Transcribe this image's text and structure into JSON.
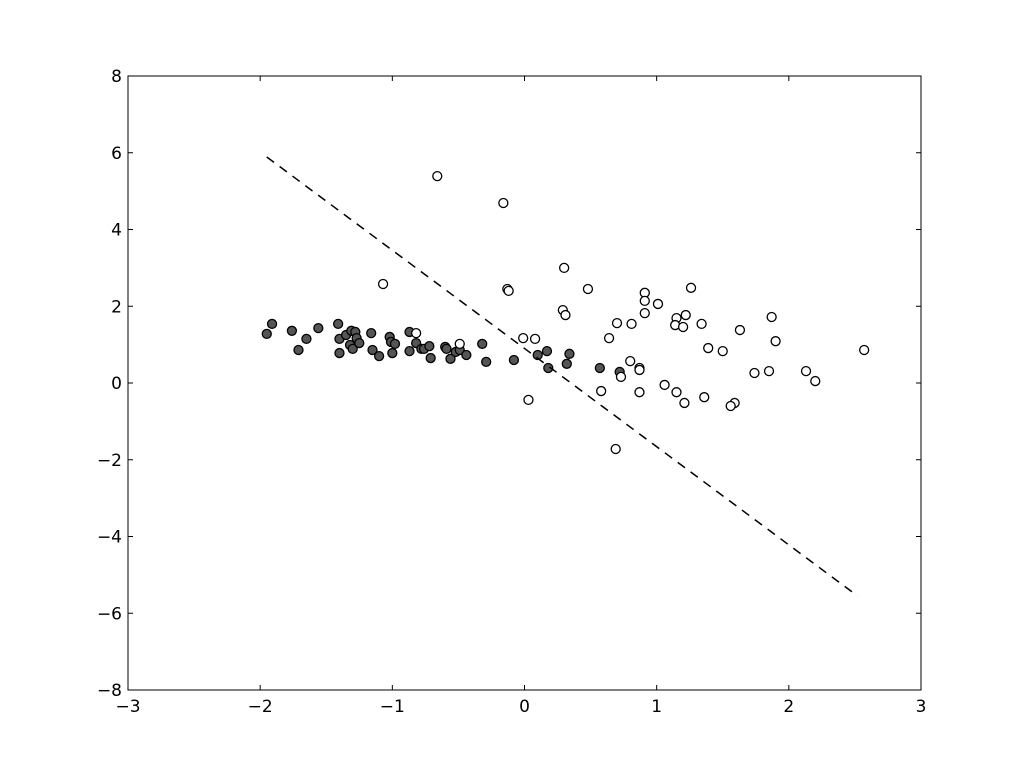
{
  "chart_data": {
    "type": "scatter",
    "title": "",
    "xlabel": "",
    "ylabel": "",
    "xlim": [
      -3,
      3
    ],
    "ylim": [
      -8,
      8
    ],
    "xticks": [
      -3,
      -2,
      -1,
      0,
      1,
      2,
      3
    ],
    "yticks": [
      -8,
      -6,
      -4,
      -2,
      0,
      2,
      4,
      6,
      8
    ],
    "xtick_labels": [
      "−3",
      "−2",
      "−1",
      "0",
      "1",
      "2",
      "3"
    ],
    "ytick_labels": [
      "−8",
      "−6",
      "−4",
      "−2",
      "0",
      "2",
      "4",
      "6",
      "8"
    ],
    "grid": false,
    "colors": {
      "filled": "#555555",
      "open": "#ffffff",
      "edge": "#000000",
      "line": "#000000"
    },
    "series": [
      {
        "marker": "filled-circle",
        "points": [
          [
            -1.95,
            1.28
          ],
          [
            -1.91,
            1.54
          ],
          [
            -1.76,
            1.36
          ],
          [
            -1.71,
            0.86
          ],
          [
            -1.65,
            1.15
          ],
          [
            -1.56,
            1.43
          ],
          [
            -1.41,
            1.54
          ],
          [
            -1.4,
            0.78
          ],
          [
            -1.4,
            1.15
          ],
          [
            -1.35,
            1.25
          ],
          [
            -1.32,
            0.99
          ],
          [
            -1.31,
            1.36
          ],
          [
            -1.3,
            0.89
          ],
          [
            -1.28,
            1.33
          ],
          [
            -1.27,
            1.17
          ],
          [
            -1.25,
            1.04
          ],
          [
            -1.16,
            1.3
          ],
          [
            -1.15,
            0.86
          ],
          [
            -1.1,
            0.7
          ],
          [
            -1.02,
            1.2
          ],
          [
            -1.01,
            1.07
          ],
          [
            -1.0,
            0.78
          ],
          [
            -0.98,
            1.02
          ],
          [
            -0.87,
            1.33
          ],
          [
            -0.87,
            0.83
          ],
          [
            -0.82,
            1.04
          ],
          [
            -0.78,
            0.89
          ],
          [
            -0.76,
            0.89
          ],
          [
            -0.72,
            0.96
          ],
          [
            -0.71,
            0.65
          ],
          [
            -0.6,
            0.94
          ],
          [
            -0.59,
            0.89
          ],
          [
            -0.56,
            0.63
          ],
          [
            -0.52,
            0.81
          ],
          [
            -0.49,
            0.86
          ],
          [
            -0.44,
            0.73
          ],
          [
            -0.32,
            1.02
          ],
          [
            -0.29,
            0.55
          ],
          [
            -0.08,
            0.6
          ],
          [
            0.1,
            0.73
          ],
          [
            0.18,
            0.39
          ],
          [
            0.17,
            0.83
          ],
          [
            0.32,
            0.5
          ],
          [
            0.34,
            0.76
          ],
          [
            0.57,
            0.39
          ],
          [
            0.72,
            0.29
          ]
        ]
      },
      {
        "marker": "open-circle",
        "points": [
          [
            -0.66,
            5.39
          ],
          [
            -0.16,
            4.69
          ],
          [
            -1.07,
            2.58
          ],
          [
            -0.82,
            1.3
          ],
          [
            -0.49,
            1.02
          ],
          [
            -0.13,
            2.45
          ],
          [
            -0.12,
            2.4
          ],
          [
            0.3,
            3.0
          ],
          [
            0.29,
            1.9
          ],
          [
            0.31,
            1.77
          ],
          [
            0.48,
            2.45
          ],
          [
            -0.01,
            1.17
          ],
          [
            0.08,
            1.15
          ],
          [
            0.03,
            -0.44
          ],
          [
            0.64,
            1.17
          ],
          [
            0.7,
            1.56
          ],
          [
            0.81,
            1.54
          ],
          [
            0.91,
            2.35
          ],
          [
            0.91,
            2.14
          ],
          [
            0.91,
            1.82
          ],
          [
            1.01,
            2.06
          ],
          [
            1.26,
            2.48
          ],
          [
            1.15,
            1.69
          ],
          [
            1.14,
            1.51
          ],
          [
            1.2,
            1.46
          ],
          [
            1.22,
            1.77
          ],
          [
            1.34,
            1.54
          ],
          [
            1.39,
            0.91
          ],
          [
            1.63,
            1.38
          ],
          [
            1.5,
            0.83
          ],
          [
            1.87,
            1.72
          ],
          [
            1.9,
            1.09
          ],
          [
            2.57,
            0.86
          ],
          [
            0.8,
            0.57
          ],
          [
            0.87,
            0.39
          ],
          [
            0.87,
            0.34
          ],
          [
            0.73,
            0.16
          ],
          [
            0.58,
            -0.21
          ],
          [
            0.87,
            -0.24
          ],
          [
            1.06,
            -0.05
          ],
          [
            1.15,
            -0.24
          ],
          [
            1.21,
            -0.52
          ],
          [
            1.36,
            -0.37
          ],
          [
            1.59,
            -0.52
          ],
          [
            1.56,
            -0.6
          ],
          [
            1.74,
            0.26
          ],
          [
            1.85,
            0.31
          ],
          [
            2.13,
            0.31
          ],
          [
            2.2,
            0.05
          ],
          [
            0.69,
            -1.72
          ]
        ]
      },
      {
        "marker": "dashed-line",
        "points": [
          [
            -1.95,
            5.89
          ],
          [
            2.52,
            -5.55
          ]
        ]
      }
    ]
  }
}
